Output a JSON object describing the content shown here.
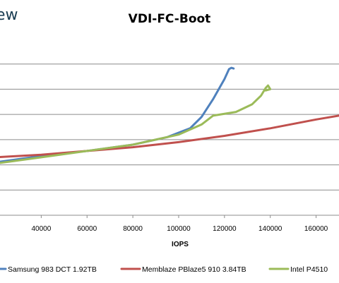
{
  "brand": {
    "text": "ew"
  },
  "chart_data": {
    "type": "line",
    "title": "VDI-FC-Boot",
    "xlabel": "IOPS",
    "ylabel": "",
    "xlim": [
      22000,
      170000
    ],
    "ylim": [
      0,
      7
    ],
    "x_ticks": [
      40000,
      60000,
      80000,
      100000,
      120000,
      140000,
      160000
    ],
    "x_tick_labels": [
      "40000",
      "60000",
      "80000",
      "100000",
      "120000",
      "140000",
      "160000"
    ],
    "y_grid": [
      0,
      1,
      2,
      3,
      4,
      5,
      6
    ],
    "grid": true,
    "legend": "bottom",
    "series": [
      {
        "name": "Samsung 983 DCT 1.92TB",
        "color": "#4f81bd",
        "points": [
          [
            20000,
            2.1
          ],
          [
            40000,
            2.35
          ],
          [
            60000,
            2.55
          ],
          [
            80000,
            2.8
          ],
          [
            95000,
            3.1
          ],
          [
            105000,
            3.45
          ],
          [
            110000,
            3.9
          ],
          [
            115000,
            4.6
          ],
          [
            120000,
            5.4
          ],
          [
            122000,
            5.8
          ],
          [
            123000,
            5.85
          ],
          [
            124000,
            5.82
          ]
        ]
      },
      {
        "name": "Memblaze PBlaze5 910 3.84TB",
        "color": "#c0504d",
        "points": [
          [
            20000,
            2.3
          ],
          [
            40000,
            2.4
          ],
          [
            60000,
            2.55
          ],
          [
            80000,
            2.7
          ],
          [
            100000,
            2.9
          ],
          [
            120000,
            3.15
          ],
          [
            140000,
            3.45
          ],
          [
            160000,
            3.8
          ],
          [
            170000,
            3.95
          ]
        ]
      },
      {
        "name": "Intel P4510",
        "color": "#9bbb59",
        "points": [
          [
            20000,
            2.05
          ],
          [
            40000,
            2.3
          ],
          [
            60000,
            2.55
          ],
          [
            80000,
            2.8
          ],
          [
            100000,
            3.2
          ],
          [
            110000,
            3.6
          ],
          [
            115000,
            3.95
          ],
          [
            125000,
            4.1
          ],
          [
            132000,
            4.4
          ],
          [
            136000,
            4.75
          ],
          [
            138000,
            5.05
          ],
          [
            139000,
            5.15
          ],
          [
            140000,
            5.0
          ],
          [
            138000,
            4.95
          ]
        ]
      }
    ]
  }
}
